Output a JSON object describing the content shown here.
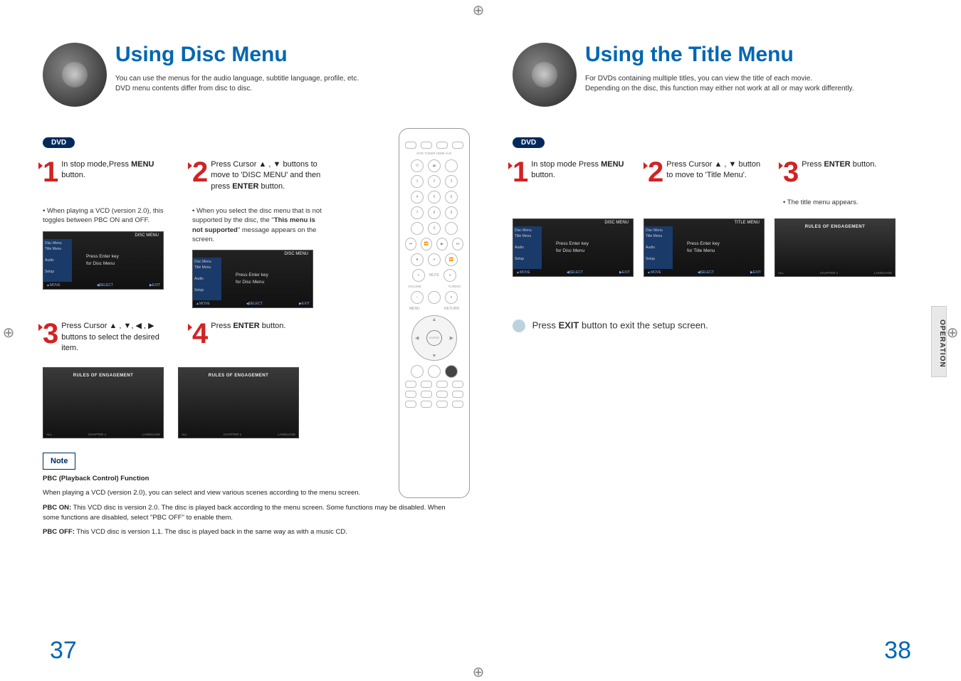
{
  "crop_glyph": "⊕",
  "left": {
    "title": "Using Disc Menu",
    "subtitle": "You can use the menus for the audio language, subtitle language, profile, etc.\nDVD menu contents differ from disc to disc.",
    "badge": "DVD",
    "steps": {
      "1": {
        "num": "1",
        "text": "In stop mode,Press <b>MENU</b> button."
      },
      "2": {
        "num": "2",
        "text": "Press Cursor ▲ , ▼ buttons to move to 'DISC MENU' and then press <b>ENTER</b> button."
      },
      "3": {
        "num": "3",
        "text": "Press Cursor ▲ , ▼, ◀ , ▶ buttons to select the desired item."
      },
      "4": {
        "num": "4",
        "text": "Press <b>ENTER</b> button."
      }
    },
    "bullet1": "• When playing a VCD (version 2.0), this toggles between PBC ON and OFF.",
    "bullet2_pre": "• When you select the disc menu that is not supported by the disc, the \"",
    "bullet2_bold": "This menu is not supported",
    "bullet2_post": "\" message appears on the screen.",
    "menu_header_left": "DISC MENU",
    "menu_header_right": "DISC MENU",
    "menu_items": "Disc Menu\nTitle Menu\n\nAudio\n\nSetup",
    "menu_center1": "Press Enter key",
    "menu_center2": "for Disc Menu",
    "menu_footer_l": "▲MOVE",
    "menu_footer_c": "◀SELECT",
    "menu_footer_r": "▶EXIT",
    "movie_title": "RULES OF ENGAGEMENT",
    "movie_tag_l": "ALL",
    "movie_tag_c": "CHAPTER 1",
    "movie_tag_r": "LANGUAGE",
    "note_label": "Note",
    "note_title": "PBC (Playback Control) Function",
    "note_line1": "When playing a VCD (version 2.0), you can select and view various scenes according to the menu screen.",
    "note_on_label": "PBC ON:",
    "note_on_text": " This VCD disc is version 2.0. The disc is played back according to the menu screen. Some functions may be disabled. When some functions are disabled, select \"PBC OFF\" to enable them.",
    "note_off_label": "PBC OFF:",
    "note_off_text": " This VCD disc is version 1.1. The disc is played back in the same way as with a music CD.",
    "page_num": "37"
  },
  "right": {
    "title": "Using the Title Menu",
    "subtitle": "For DVDs containing multiple titles, you can view the title of each movie.\nDepending on the disc, this function may either not work at all or may work differently.",
    "badge": "DVD",
    "steps": {
      "1": {
        "num": "1",
        "text": "In stop mode Press <b>MENU</b> button."
      },
      "2": {
        "num": "2",
        "text": "Press Cursor ▲ , ▼ button to move to 'Title Menu'."
      },
      "3": {
        "num": "3",
        "text": "Press <b>ENTER</b> button."
      }
    },
    "bullet": "• The title menu appears.",
    "menu_header_left": "DISC MENU",
    "menu_header_right": "TITLE MENU",
    "menu_items": "Disc Menu\nTitle Menu\n\nAudio\n\nSetup",
    "menu_center1a": "Press Enter key",
    "menu_center2a": "for Disc Menu",
    "menu_center1b": "Press Enter key",
    "menu_center2b": "for Title Menu",
    "menu_footer_l": "▲MOVE",
    "menu_footer_c": "◀SELECT",
    "menu_footer_r": "▶EXIT",
    "movie_title": "RULES OF ENGAGEMENT",
    "movie_tag_l": "ALL",
    "movie_tag_c": "CHAPTER 1",
    "movie_tag_r": "LANGUAGE",
    "exit_pre": "Press ",
    "exit_bold": "EXIT",
    "exit_post": " button to exit the setup screen.",
    "side_tab": "OPERATION",
    "page_num": "38"
  },
  "remote": {
    "top_row": "DVD  TUNER  HDMI  AUX",
    "power": "POWER",
    "eject": "EJECT",
    "btn1": "1",
    "btn2": "2",
    "btn3": "3",
    "btn4": "4",
    "btn5": "5",
    "btn6": "6",
    "btn7": "7",
    "btn8": "8",
    "btn9": "9",
    "btn0": "0",
    "menu": "MENU",
    "return": "RETURN",
    "enter": "ENTER",
    "plus": "+",
    "minus": "−",
    "volume": "VOLUME",
    "mute": "MUTE",
    "tuning": "TUNING"
  },
  "colors": {
    "title": "#0066b3",
    "accent": "#d32222",
    "badge": "#002a5c"
  }
}
